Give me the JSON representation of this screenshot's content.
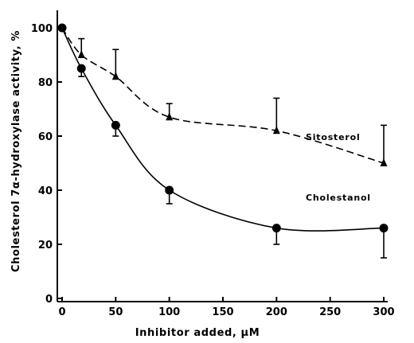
{
  "chart_data": {
    "type": "line",
    "title": "",
    "xlabel": "Inhibitor added, μM",
    "ylabel": "Cholesterol 7α-hydroxylase activity, %",
    "xlim": [
      0,
      300
    ],
    "ylim": [
      0,
      100
    ],
    "xticks": [
      "0",
      "50",
      "100",
      "150",
      "200",
      "250",
      "300"
    ],
    "yticks": [
      "0",
      "20",
      "40",
      "60",
      "80",
      "100"
    ],
    "grid": false,
    "legend": "inline labels",
    "series": [
      {
        "name": "Sitosterol",
        "marker": "triangle",
        "line_style": "dashed",
        "x": [
          0,
          18,
          50,
          100,
          200,
          300
        ],
        "y": [
          100,
          90,
          82,
          67,
          62,
          50
        ],
        "error_upper": [
          null,
          96,
          92,
          72,
          74,
          64
        ],
        "error_lower": [
          null,
          null,
          null,
          null,
          null,
          null
        ]
      },
      {
        "name": "Cholestanol",
        "marker": "circle",
        "line_style": "solid",
        "x": [
          0,
          18,
          50,
          100,
          200,
          300
        ],
        "y": [
          100,
          85,
          64,
          40,
          26,
          26
        ],
        "error_upper": [
          null,
          null,
          null,
          null,
          null,
          null
        ],
        "error_lower": [
          null,
          82,
          60,
          35,
          20,
          15
        ]
      }
    ]
  }
}
